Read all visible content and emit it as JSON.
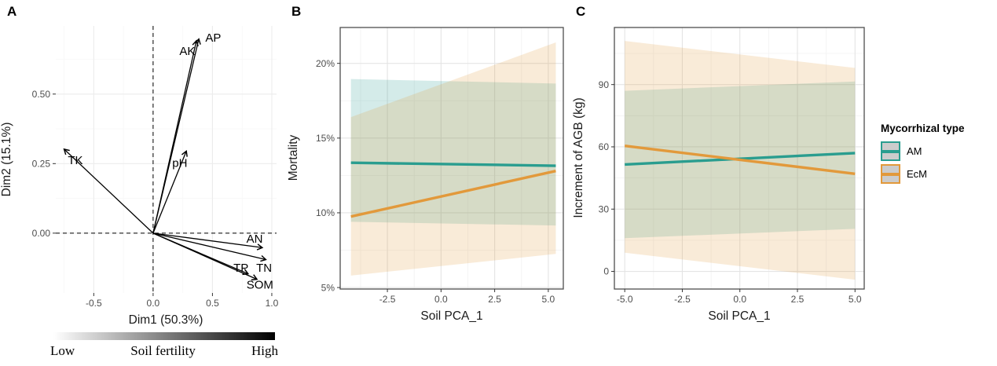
{
  "panel_tags": {
    "a": "A",
    "b": "B",
    "c": "C"
  },
  "colors": {
    "am": "#2a9d8f",
    "ecm": "#e2993b",
    "band_opacity": 0.2,
    "grid_major": "#e4e4e4",
    "grid_minor": "#f2f2f2",
    "grid_major_a": "#ececec",
    "grid_minor_a": "#f7f7f7",
    "axis_text": "#4d4d4d",
    "axis_title": "#1a1a1a",
    "panel_border": "#4d4d4d",
    "arrow": "#000000",
    "legend_key_bg": "#cccccc"
  },
  "legend": {
    "title": "Mycorrhizal type",
    "items": [
      {
        "label": "AM",
        "color": "#2a9d8f"
      },
      {
        "label": "EcM",
        "color": "#e2993b"
      }
    ]
  },
  "chart_data": [
    {
      "panel": "A",
      "type": "scatter",
      "subtype": "pca_biplot_arrows",
      "title": "",
      "xlabel": "Dim1 (50.3%)",
      "ylabel": "Dim2 (15.1%)",
      "xlim": [
        -0.82,
        1.04
      ],
      "ylim": [
        -0.215,
        0.745
      ],
      "xticks": [
        -0.5,
        0,
        0.5,
        1
      ],
      "xtick_labels": [
        "-0.5",
        "0.0",
        "0.5",
        "1.0"
      ],
      "yticks": [
        0,
        0.25,
        0.5
      ],
      "ytick_labels": [
        "0.00",
        "0.25",
        "0.50"
      ],
      "minor_xticks": [
        -0.75,
        -0.25,
        0.25,
        0.75
      ],
      "minor_yticks": [
        0.125,
        0.375,
        0.625
      ],
      "zero_lines_dashed": true,
      "arrows": [
        {
          "label": "TK",
          "x": -0.75,
          "y": 0.302,
          "lx": -0.655,
          "ly": 0.262
        },
        {
          "label": "pH",
          "x": 0.28,
          "y": 0.295,
          "lx": 0.225,
          "ly": 0.252
        },
        {
          "label": "AK",
          "x": 0.365,
          "y": 0.692,
          "lx": 0.288,
          "ly": 0.655
        },
        {
          "label": "AP",
          "x": 0.385,
          "y": 0.698,
          "lx": 0.506,
          "ly": 0.702
        },
        {
          "label": "AN",
          "x": 0.92,
          "y": -0.052,
          "lx": 0.855,
          "ly": -0.02
        },
        {
          "label": "TN",
          "x": 0.95,
          "y": -0.095,
          "lx": 0.935,
          "ly": -0.125
        },
        {
          "label": "TP",
          "x": 0.8,
          "y": -0.146,
          "lx": 0.74,
          "ly": -0.124
        },
        {
          "label": "SOM",
          "x": 0.875,
          "y": -0.166,
          "lx": 0.9,
          "ly": -0.186
        }
      ],
      "gradient_legend": {
        "left_label": "Low",
        "center_label": "Soil fertility",
        "right_label": "High",
        "from": "#ffffff",
        "to": "#000000"
      }
    },
    {
      "panel": "B",
      "type": "line",
      "title": "",
      "xlabel": "Soil PCA_1",
      "ylabel": "Mortality",
      "xlim": [
        -4.7,
        5.7
      ],
      "ylim": [
        4.9,
        22.4
      ],
      "xticks": [
        -2.5,
        0,
        2.5,
        5
      ],
      "xtick_labels": [
        "-2.5",
        "0.0",
        "2.5",
        "5.0"
      ],
      "yticks": [
        5,
        10,
        15,
        20
      ],
      "ytick_labels": [
        "5%",
        "10%",
        "15%",
        "20%"
      ],
      "minor_xticks": [
        -3.75,
        -1.25,
        1.25,
        3.75
      ],
      "minor_yticks": [
        7.5,
        12.5,
        17.5
      ],
      "y_unit": "percent",
      "series": [
        {
          "name": "AM",
          "x": [
            -4.2,
            5.35
          ],
          "y": [
            13.35,
            13.15
          ],
          "band_upper": [
            18.95,
            18.65
          ],
          "band_lower": [
            9.4,
            9.15
          ]
        },
        {
          "name": "EcM",
          "x": [
            -4.2,
            5.35
          ],
          "y": [
            9.75,
            12.8
          ],
          "band_upper": [
            16.4,
            21.4
          ],
          "band_lower": [
            5.8,
            7.25
          ]
        }
      ]
    },
    {
      "panel": "C",
      "type": "line",
      "title": "",
      "xlabel": "Soil PCA_1",
      "ylabel": "Increment of AGB (kg)",
      "xlim": [
        -5.45,
        5.4
      ],
      "ylim": [
        -8.5,
        117.5
      ],
      "xticks": [
        -5,
        -2.5,
        0,
        2.5,
        5
      ],
      "xtick_labels": [
        "-5.0",
        "-2.5",
        "0.0",
        "2.5",
        "5.0"
      ],
      "yticks": [
        0,
        30,
        60,
        90
      ],
      "ytick_labels": [
        "0",
        "30",
        "60",
        "90"
      ],
      "minor_xticks": [
        -3.75,
        -1.25,
        1.25,
        3.75
      ],
      "minor_yticks": [
        15,
        45,
        75,
        105
      ],
      "y_unit": "kg",
      "series": [
        {
          "name": "AM",
          "x": [
            -5,
            5
          ],
          "y": [
            51.5,
            57
          ],
          "band_upper": [
            87,
            91.5
          ],
          "band_lower": [
            16,
            20.5
          ]
        },
        {
          "name": "EcM",
          "x": [
            -5,
            5
          ],
          "y": [
            60.5,
            47
          ],
          "band_upper": [
            111,
            98
          ],
          "band_lower": [
            9,
            -4
          ]
        }
      ]
    }
  ]
}
